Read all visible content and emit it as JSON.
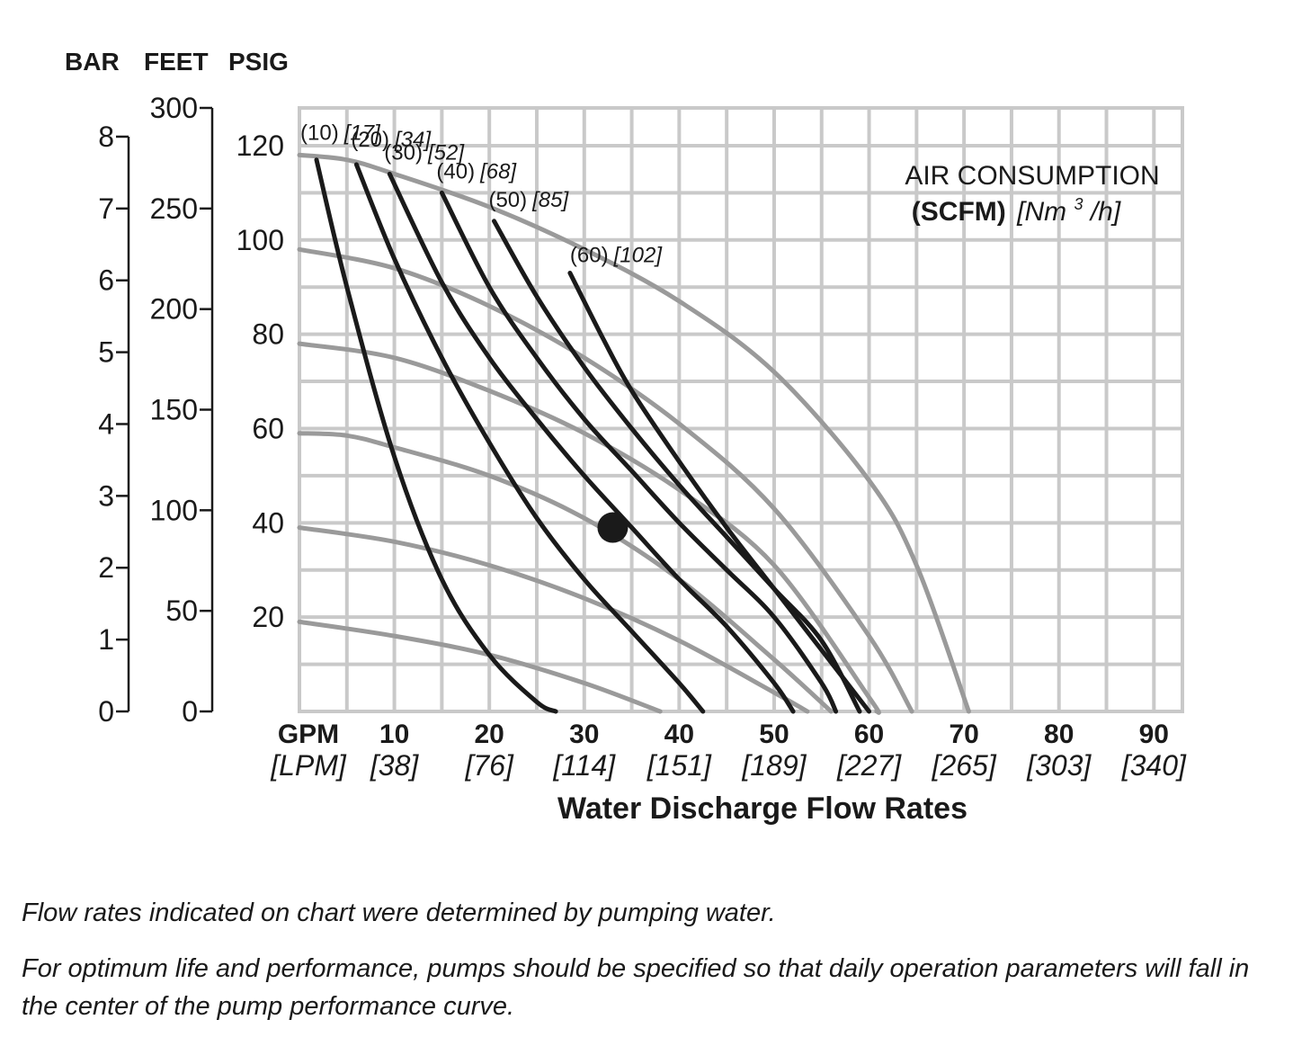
{
  "chart_data": {
    "type": "line",
    "y_axes": {
      "bar": {
        "header": "BAR",
        "ticks": [
          "0",
          "1",
          "2",
          "3",
          "4",
          "5",
          "6",
          "7",
          "8"
        ],
        "range": [
          0,
          8.4
        ]
      },
      "feet": {
        "header": "FEET",
        "ticks": [
          "0",
          "50",
          "100",
          "150",
          "200",
          "250",
          "300"
        ],
        "range": [
          0,
          300
        ]
      },
      "psig": {
        "header": "PSIG",
        "ticks": [
          "20",
          "40",
          "60",
          "80",
          "100",
          "120"
        ],
        "range": [
          0,
          128
        ]
      }
    },
    "x_axis": {
      "title": "Water Discharge Flow Rates",
      "range": [
        0,
        93
      ],
      "ticks": [
        {
          "gpm": "GPM",
          "lpm": "[LPM]"
        },
        {
          "gpm": "10",
          "lpm": "[38]"
        },
        {
          "gpm": "20",
          "lpm": "[76]"
        },
        {
          "gpm": "30",
          "lpm": "[114]"
        },
        {
          "gpm": "40",
          "lpm": "[151]"
        },
        {
          "gpm": "50",
          "lpm": "[189]"
        },
        {
          "gpm": "60",
          "lpm": "[227]"
        },
        {
          "gpm": "70",
          "lpm": "[265]"
        },
        {
          "gpm": "80",
          "lpm": "[303]"
        },
        {
          "gpm": "90",
          "lpm": "[340]"
        }
      ]
    },
    "legend": {
      "line1": "AIR CONSUMPTION",
      "bold": "(SCFM)",
      "unit_a": "[Nm",
      "unit_sup": "3",
      "unit_b": "/h]"
    },
    "inlet_pressure_curves": [
      {
        "x": [
          0,
          5,
          10,
          20,
          30,
          40,
          50,
          60,
          65,
          70.5
        ],
        "y": [
          118,
          117,
          114,
          107,
          98,
          87,
          72,
          49,
          31,
          0
        ]
      },
      {
        "x": [
          0,
          10,
          20,
          30,
          40,
          50,
          60,
          64.5
        ],
        "y": [
          98,
          94,
          86,
          75,
          61,
          43,
          16,
          0
        ]
      },
      {
        "x": [
          0,
          10,
          20,
          30,
          40,
          50,
          60,
          60.8
        ],
        "y": [
          78,
          75,
          68,
          59,
          47,
          31,
          3,
          0
        ]
      },
      {
        "x": [
          0,
          5,
          10,
          20,
          30,
          40,
          50,
          56
        ],
        "y": [
          59,
          58.5,
          56,
          50,
          41,
          28,
          11,
          0
        ]
      },
      {
        "x": [
          0,
          10,
          20,
          30,
          40,
          50,
          53.5
        ],
        "y": [
          39,
          36,
          31,
          24,
          15,
          4,
          0
        ]
      },
      {
        "x": [
          0,
          10,
          20,
          30,
          38
        ],
        "y": [
          19,
          16,
          12,
          6,
          0
        ]
      }
    ],
    "air_consumption_curves": [
      {
        "label": "(10)",
        "label_nm": "[17]",
        "x": [
          1.8,
          5,
          10,
          15,
          20,
          25,
          27
        ],
        "y": [
          117,
          90,
          54,
          28,
          12,
          2,
          0
        ]
      },
      {
        "label": "(20)",
        "label_nm": "[34]",
        "x": [
          6,
          10,
          15,
          20,
          25,
          30,
          35,
          40,
          42.5
        ],
        "y": [
          116,
          96,
          75,
          57,
          41,
          28,
          17,
          6,
          0
        ]
      },
      {
        "label": "(30)",
        "label_nm": "[52]",
        "x": [
          9.5,
          15,
          20,
          25,
          30,
          35,
          40,
          45,
          50,
          52
        ],
        "y": [
          114,
          91,
          75,
          62,
          50,
          39,
          28,
          18,
          6,
          0
        ]
      },
      {
        "label": "(40)",
        "label_nm": "[68]",
        "x": [
          15,
          20,
          25,
          30,
          35,
          40,
          45,
          50,
          55,
          56.5
        ],
        "y": [
          110,
          90,
          75,
          62,
          51,
          40,
          30,
          20,
          6,
          0
        ]
      },
      {
        "label": "(50)",
        "label_nm": "[85]",
        "x": [
          20.5,
          25,
          30,
          35,
          40,
          45,
          50,
          55,
          59
        ],
        "y": [
          104,
          88,
          73,
          60,
          48,
          37,
          26,
          15,
          0
        ]
      },
      {
        "label": "(60)",
        "label_nm": "[102]",
        "x": [
          28.5,
          32,
          35,
          40,
          45,
          50,
          55,
          60
        ],
        "y": [
          93,
          79,
          68,
          53,
          39,
          26,
          13,
          0
        ]
      }
    ],
    "point": {
      "x": 33,
      "y": 39
    },
    "grid": true
  },
  "notes": [
    "Flow rates indicated on chart were determined by pumping water.",
    "For optimum life and performance, pumps should be specified so that daily operation parameters will fall in the center of the pump performance curve."
  ]
}
